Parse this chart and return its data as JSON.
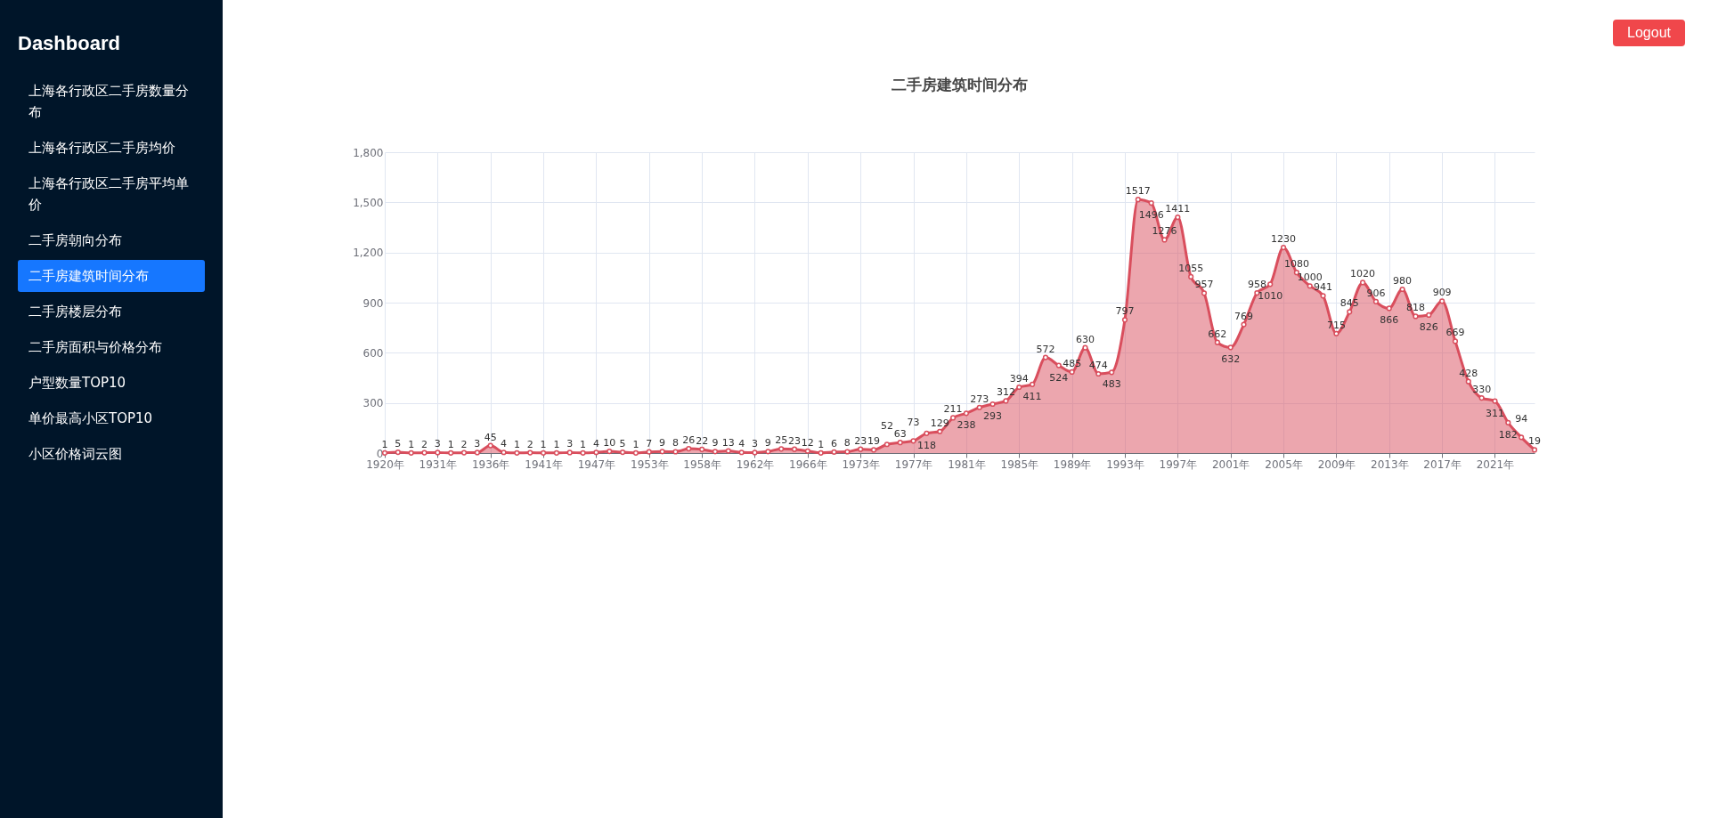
{
  "chart_data": {
    "type": "area",
    "title": "二手房建筑时间分布",
    "categories": [
      "1920年",
      null,
      null,
      null,
      "1931年",
      null,
      null,
      null,
      "1936年",
      null,
      null,
      null,
      "1941年",
      null,
      null,
      null,
      "1947年",
      null,
      null,
      null,
      "1953年",
      null,
      null,
      null,
      "1958年",
      null,
      null,
      null,
      "1962年",
      null,
      null,
      null,
      "1966年",
      null,
      null,
      null,
      "1973年",
      null,
      null,
      null,
      "1977年",
      null,
      null,
      null,
      "1981年",
      null,
      null,
      null,
      "1985年",
      null,
      null,
      null,
      "1989年",
      null,
      null,
      null,
      "1993年",
      null,
      null,
      null,
      "1997年",
      null,
      null,
      null,
      "2001年",
      null,
      null,
      null,
      "2005年",
      null,
      null,
      null,
      "2009年",
      null,
      null,
      null,
      "2013年",
      null,
      null,
      null,
      "2017年",
      null,
      null,
      null,
      "2021年",
      null,
      null,
      null
    ],
    "values": [
      1,
      5,
      1,
      2,
      3,
      1,
      2,
      3,
      45,
      4,
      1,
      2,
      1,
      1,
      3,
      1,
      4,
      10,
      5,
      1,
      7,
      9,
      8,
      26,
      22,
      9,
      13,
      4,
      3,
      9,
      25,
      23,
      12,
      1,
      6,
      8,
      23,
      19,
      52,
      63,
      73,
      118,
      129,
      211,
      238,
      273,
      293,
      312,
      394,
      411,
      572,
      524,
      485,
      630,
      474,
      483,
      797,
      1517,
      1496,
      1276,
      1411,
      1055,
      957,
      662,
      632,
      769,
      958,
      1010,
      1230,
      1080,
      1000,
      941,
      715,
      845,
      1020,
      906,
      866,
      980,
      818,
      826,
      909,
      669,
      428,
      330,
      311,
      182,
      94,
      19
    ],
    "color": "#d94e5d",
    "ylim": [
      0,
      1800
    ],
    "yticks": [
      0,
      300,
      600,
      900,
      {
        "value": 1200,
        "label": "1,200"
      },
      {
        "value": 1500,
        "label": "1,500"
      },
      {
        "value": 1800,
        "label": "1,800"
      }
    ],
    "grid": true,
    "data_labels": true,
    "marker": "circle",
    "annotations": [
      "Dashboard",
      "上海各行政区二手房数量分布",
      "上海各行政区二手房均价",
      "上海各行政区二手房平均单价",
      "二手房朝向分布",
      "二手房建筑时间分布",
      "二手房楼层分布",
      "二手房面积与价格分布",
      "户型数量TOP10",
      "单价最高小区TOP10",
      "小区价格词云图",
      "Logout"
    ]
  }
}
